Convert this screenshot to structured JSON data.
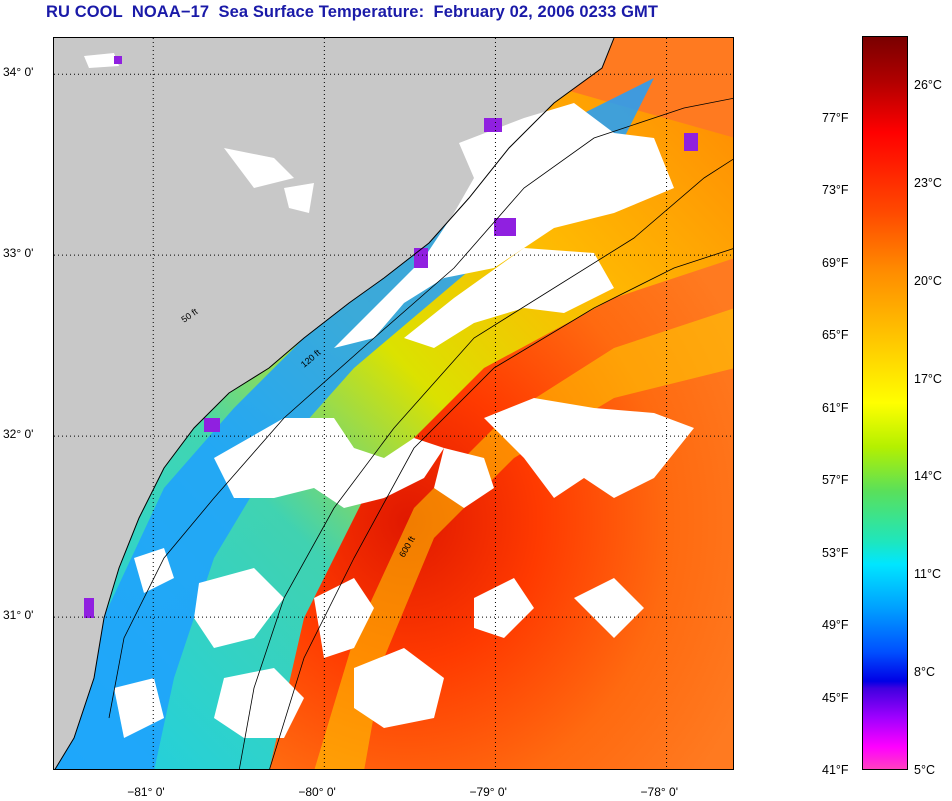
{
  "title": "RU COOL  NOAA−17  Sea Surface Temperature:  February 02, 2006 0233 GMT",
  "map": {
    "lon_range": [
      -81.58,
      -77.6
    ],
    "lat_range": [
      30.15,
      34.2
    ],
    "lat_ticks": [
      {
        "value": 34,
        "label": "34° 0'"
      },
      {
        "value": 33,
        "label": "33° 0'"
      },
      {
        "value": 32,
        "label": "32° 0'"
      },
      {
        "value": 31,
        "label": "31° 0'"
      }
    ],
    "lon_ticks": [
      {
        "value": -81,
        "label": "−81° 0'"
      },
      {
        "value": -80,
        "label": "−80° 0'"
      },
      {
        "value": -79,
        "label": "−79° 0'"
      },
      {
        "value": -78,
        "label": "−78° 0'"
      }
    ],
    "isobath_labels": [
      "50 ft",
      "120 ft",
      "600 ft"
    ],
    "colors": {
      "land": "#c8c8c8",
      "cloud": "#ffffff",
      "coastline": "#000000",
      "gridline": "#000000"
    }
  },
  "colorbar": {
    "range_c": [
      5,
      27.5
    ],
    "celsius_labels": [
      "26°C",
      "23°C",
      "20°C",
      "17°C",
      "14°C",
      "11°C",
      "8°C",
      "5°C"
    ],
    "fahrenheit_labels": [
      "77°F",
      "73°F",
      "69°F",
      "65°F",
      "61°F",
      "57°F",
      "53°F",
      "49°F",
      "45°F",
      "41°F"
    ]
  }
}
